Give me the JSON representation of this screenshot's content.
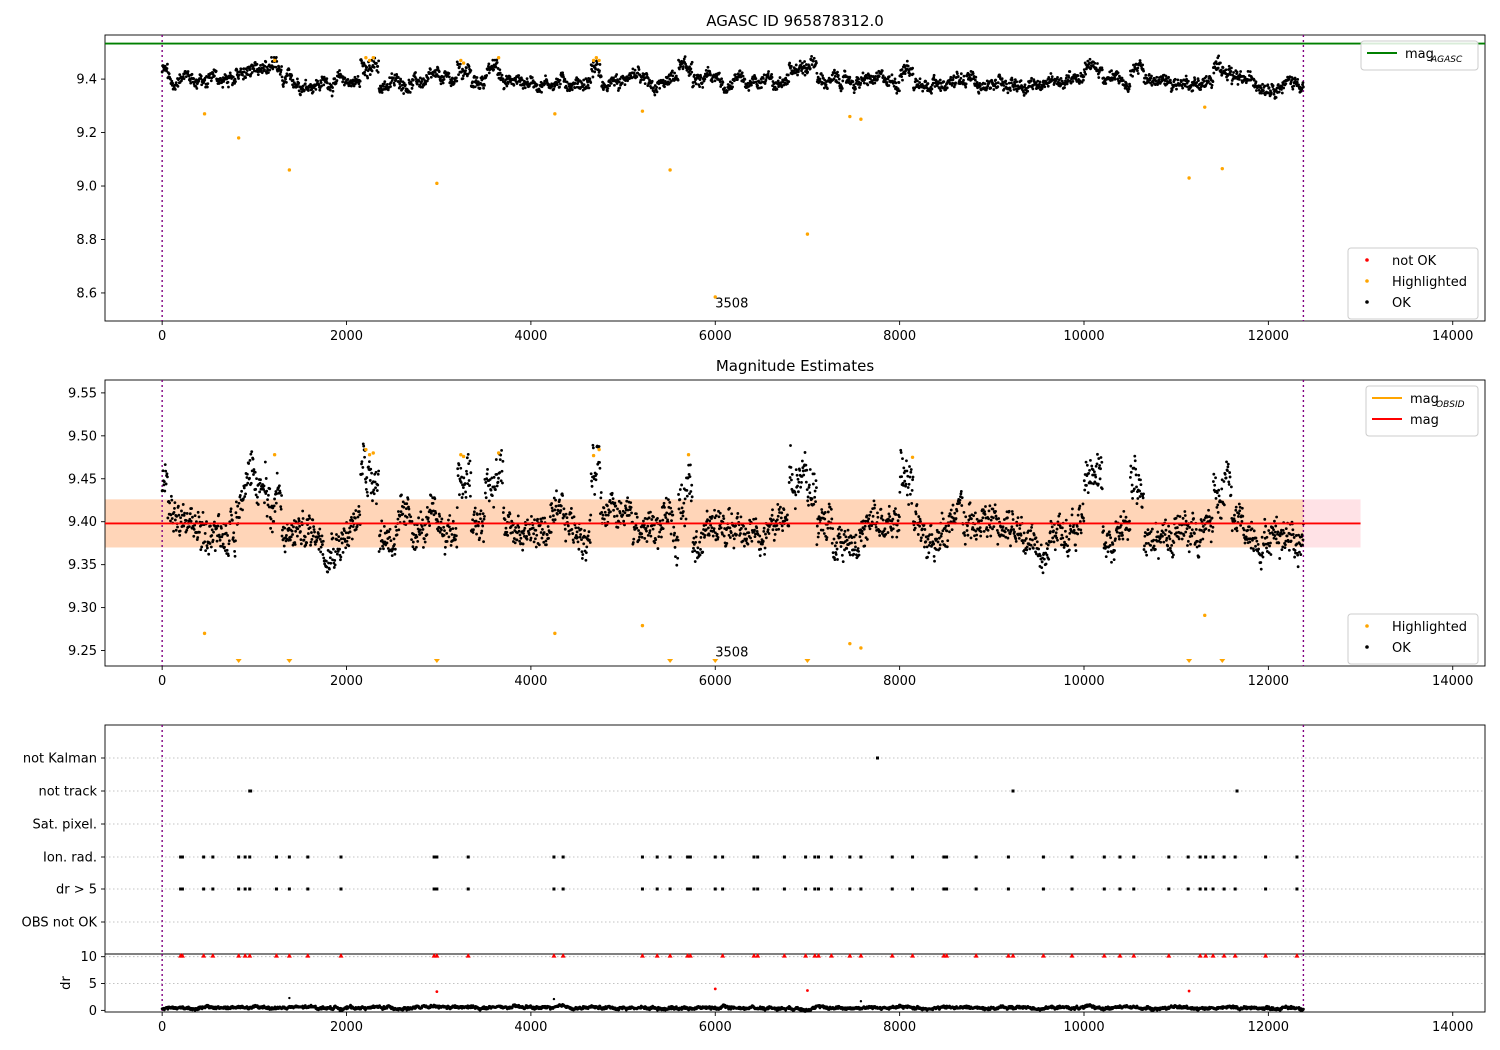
{
  "chart_data": [
    {
      "type": "scatter",
      "title": "AGASC ID 965878312.0",
      "xlim": [
        -620,
        14350
      ],
      "ylim": [
        8.495,
        9.565
      ],
      "xticks": [
        0,
        2000,
        4000,
        6000,
        8000,
        10000,
        12000,
        14000
      ],
      "xtick_labels": [
        "0",
        "2000",
        "4000",
        "6000",
        "8000",
        "10000",
        "12000",
        "14000"
      ],
      "yticks": [
        8.6,
        8.8,
        9.0,
        9.2,
        9.4
      ],
      "ytick_labels": [
        "8.6",
        "8.8",
        "9.0",
        "9.2",
        "9.4"
      ],
      "vlines": [
        0,
        12380
      ],
      "hlines": [
        {
          "y": 9.533,
          "color": "#008000",
          "name": "mag_AGASC"
        }
      ],
      "legend_top": {
        "position": "upper-right",
        "entries": [
          {
            "label": "mag",
            "sub": "AGASC",
            "color": "#008000"
          }
        ]
      },
      "legend_bottom": {
        "position": "lower-right",
        "entries": [
          {
            "label": "not OK",
            "color": "#ff0000"
          },
          {
            "label": "Highlighted",
            "color": "#ffa500"
          },
          {
            "label": "OK",
            "color": "#000000"
          }
        ]
      },
      "annotations": [
        {
          "text": "3508",
          "x": 6000,
          "y": 8.545
        }
      ],
      "ok_band": {
        "center": 9.39,
        "spread": 0.035,
        "x": [
          0,
          12380
        ]
      },
      "ok_excursions": [
        {
          "x0": 0,
          "x1": 60,
          "dy": 0.04
        },
        {
          "x0": 800,
          "x1": 1300,
          "dy": 0.05
        },
        {
          "x0": 2150,
          "x1": 2350,
          "dy": 0.07
        },
        {
          "x0": 3200,
          "x1": 3350,
          "dy": 0.06
        },
        {
          "x0": 3500,
          "x1": 3700,
          "dy": 0.04
        },
        {
          "x0": 4650,
          "x1": 4750,
          "dy": 0.06
        },
        {
          "x0": 5600,
          "x1": 5750,
          "dy": 0.05
        },
        {
          "x0": 6800,
          "x1": 7100,
          "dy": 0.05
        },
        {
          "x0": 8000,
          "x1": 8150,
          "dy": 0.05
        },
        {
          "x0": 10000,
          "x1": 10200,
          "dy": 0.04
        },
        {
          "x0": 10500,
          "x1": 10650,
          "dy": 0.05
        },
        {
          "x0": 11400,
          "x1": 11600,
          "dy": 0.04
        }
      ],
      "highlighted": {
        "x": [
          460,
          830,
          1220,
          1380,
          2210,
          2250,
          2290,
          2980,
          3240,
          3270,
          3650,
          4260,
          4680,
          4710,
          4740,
          5210,
          5510,
          6000,
          7000,
          7460,
          7580,
          11140,
          11310,
          11500
        ],
        "y": [
          9.27,
          9.18,
          9.47,
          9.06,
          9.48,
          9.47,
          9.48,
          9.01,
          9.47,
          9.46,
          9.48,
          9.27,
          9.47,
          9.48,
          9.47,
          9.28,
          9.06,
          8.585,
          8.82,
          9.26,
          9.25,
          9.03,
          9.295,
          9.065
        ]
      }
    },
    {
      "type": "scatter",
      "title": "Magnitude Estimates",
      "xlim": [
        -620,
        14350
      ],
      "ylim": [
        9.232,
        9.565
      ],
      "xticks": [
        0,
        2000,
        4000,
        6000,
        8000,
        10000,
        12000,
        14000
      ],
      "xtick_labels": [
        "0",
        "2000",
        "4000",
        "6000",
        "8000",
        "10000",
        "12000",
        "14000"
      ],
      "yticks": [
        9.25,
        9.3,
        9.35,
        9.4,
        9.45,
        9.5,
        9.55
      ],
      "ytick_labels": [
        "9.25",
        "9.30",
        "9.35",
        "9.40",
        "9.45",
        "9.50",
        "9.55"
      ],
      "vlines": [
        0,
        12380
      ],
      "hlines": [
        {
          "y": 9.398,
          "color": "#ff0000",
          "name": "mag"
        }
      ],
      "bands": [
        {
          "y0": 9.37,
          "y1": 9.426,
          "x0": -620,
          "x1": 13000,
          "color": "#ffb6c1",
          "opacity": 0.4
        },
        {
          "y0": 9.37,
          "y1": 9.426,
          "x0": -620,
          "x1": 12380,
          "color": "#ffa500",
          "opacity": 0.2
        }
      ],
      "legend_top": {
        "position": "upper-right",
        "entries": [
          {
            "label": "mag",
            "sub": "OBSID",
            "color": "#ffa500"
          },
          {
            "label": "mag",
            "sub": "",
            "color": "#ff0000"
          }
        ]
      },
      "legend_bottom": {
        "position": "lower-right",
        "entries": [
          {
            "label": "Highlighted",
            "color": "#ffa500"
          },
          {
            "label": "OK",
            "color": "#000000"
          }
        ]
      },
      "annotations": [
        {
          "text": "3508",
          "x": 6000,
          "y": 9.243
        }
      ],
      "ok_band": {
        "center": 9.39,
        "spread": 0.03,
        "x": [
          0,
          12380
        ]
      },
      "ok_excursions": [
        {
          "x0": 0,
          "x1": 60,
          "dy": 0.05
        },
        {
          "x0": 800,
          "x1": 1300,
          "dy": 0.04
        },
        {
          "x0": 2150,
          "x1": 2350,
          "dy": 0.07
        },
        {
          "x0": 3200,
          "x1": 3350,
          "dy": 0.07
        },
        {
          "x0": 3500,
          "x1": 3700,
          "dy": 0.05
        },
        {
          "x0": 4650,
          "x1": 4750,
          "dy": 0.07
        },
        {
          "x0": 5600,
          "x1": 5750,
          "dy": 0.06
        },
        {
          "x0": 6800,
          "x1": 7100,
          "dy": 0.05
        },
        {
          "x0": 8000,
          "x1": 8150,
          "dy": 0.06
        },
        {
          "x0": 10000,
          "x1": 10200,
          "dy": 0.05
        },
        {
          "x0": 10500,
          "x1": 10650,
          "dy": 0.06
        },
        {
          "x0": 11400,
          "x1": 11600,
          "dy": 0.05
        }
      ],
      "highlighted": {
        "x": [
          460,
          1220,
          2210,
          2250,
          2290,
          3240,
          3270,
          3650,
          4260,
          4680,
          4740,
          5210,
          5710,
          7460,
          7580,
          8140,
          11310
        ],
        "y": [
          9.27,
          9.478,
          9.484,
          9.478,
          9.48,
          9.478,
          9.476,
          9.48,
          9.27,
          9.477,
          9.484,
          9.279,
          9.478,
          9.258,
          9.253,
          9.475,
          9.291
        ]
      },
      "highlighted_clipped_x": [
        830,
        1380,
        2980,
        5510,
        6000,
        7000,
        11140,
        11500
      ]
    },
    {
      "type": "scatter",
      "title": "",
      "xlim": [
        -620,
        14350
      ],
      "xticks": [
        0,
        2000,
        4000,
        6000,
        8000,
        10000,
        12000,
        14000
      ],
      "xtick_labels": [
        "0",
        "2000",
        "4000",
        "6000",
        "8000",
        "10000",
        "12000",
        "14000"
      ],
      "vlines": [
        0,
        12380
      ],
      "flag_rows": [
        "not Kalman",
        "not track",
        "Sat. pixel.",
        "Ion. rad.",
        "dr > 5",
        "OBS not OK"
      ],
      "flags": {
        "not Kalman": [
          7760
        ],
        "not track": [
          950,
          960,
          9230,
          11660
        ],
        "Sat. pixel.": [],
        "Ion. rad.": [
          200,
          220,
          450,
          550,
          830,
          900,
          950,
          1240,
          1380,
          1580,
          1940,
          2950,
          2980,
          3320,
          4250,
          4350,
          5210,
          5370,
          5510,
          5700,
          5730,
          6000,
          6080,
          6420,
          6460,
          6750,
          6980,
          7080,
          7120,
          7260,
          7460,
          7580,
          7920,
          8140,
          8480,
          8510,
          8830,
          9180,
          9560,
          9870,
          10220,
          10390,
          10540,
          10920,
          11130,
          11260,
          11320,
          11400,
          11520,
          11640,
          11970,
          12310
        ],
        "dr > 5": [
          200,
          220,
          450,
          550,
          830,
          900,
          950,
          1240,
          1380,
          1580,
          1940,
          2950,
          2980,
          3320,
          4250,
          4350,
          5210,
          5370,
          5510,
          5700,
          5730,
          6000,
          6080,
          6420,
          6460,
          6750,
          6980,
          7080,
          7120,
          7260,
          7460,
          7580,
          7920,
          8140,
          8480,
          8510,
          8830,
          9180,
          9560,
          9870,
          10220,
          10390,
          10540,
          10920,
          11130,
          11260,
          11320,
          11400,
          11520,
          11640,
          11970,
          12310
        ],
        "OBS not OK": []
      }
    },
    {
      "type": "scatter",
      "title": "",
      "ylabel": "dr",
      "xlim": [
        -620,
        14350
      ],
      "ylim": [
        -0.3,
        10.5
      ],
      "yticks": [
        0,
        5,
        10
      ],
      "ytick_labels": [
        "0",
        "5",
        "10"
      ],
      "xticks": [
        0,
        2000,
        4000,
        6000,
        8000,
        10000,
        12000,
        14000
      ],
      "xtick_labels": [
        "0",
        "2000",
        "4000",
        "6000",
        "8000",
        "10000",
        "12000",
        "14000"
      ],
      "vlines": [
        0,
        12380
      ],
      "ok_band": {
        "center": 0.5,
        "spread": 0.4,
        "x": [
          0,
          12380
        ]
      },
      "red_capped_x": [
        200,
        220,
        450,
        550,
        830,
        900,
        950,
        1240,
        1380,
        1580,
        1940,
        2950,
        2980,
        3320,
        4250,
        4350,
        5210,
        5370,
        5510,
        5700,
        5730,
        6080,
        6420,
        6460,
        6750,
        6980,
        7080,
        7120,
        7260,
        7460,
        7580,
        7920,
        8140,
        8480,
        8510,
        8830,
        9180,
        9230,
        9560,
        9870,
        10220,
        10390,
        10540,
        10920,
        11260,
        11320,
        11400,
        11520,
        11640,
        11970,
        12310
      ],
      "red_points": {
        "x": [
          2980,
          6000,
          7000,
          11140
        ],
        "y": [
          3.5,
          4.0,
          3.7,
          3.6
        ]
      },
      "black_outliers": {
        "x": [
          1380,
          4250,
          7580
        ],
        "y": [
          2.3,
          2.1,
          1.7
        ]
      }
    }
  ]
}
